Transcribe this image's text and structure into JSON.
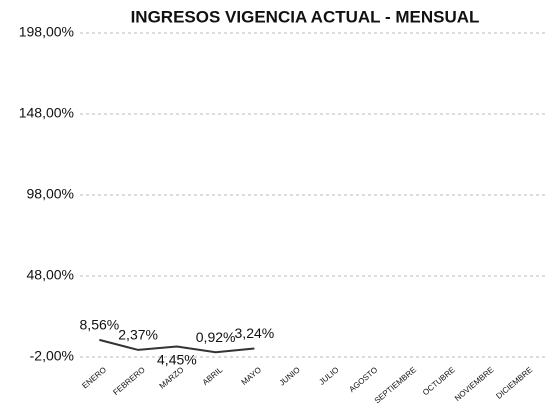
{
  "chart_data": {
    "type": "line",
    "title": "INGRESOS VIGENCIA ACTUAL - MENSUAL",
    "categories": [
      "ENERO",
      "FEBRERO",
      "MARZO",
      "ABRIL",
      "MAYO",
      "JUNIO",
      "JULIO",
      "AGOSTO",
      "SEPTIEMBRE",
      "OCTUBRE",
      "NOVIEMBRE",
      "DICIEMBRE"
    ],
    "series": [
      {
        "color": "#333333",
        "values": [
          8.56,
          2.37,
          4.45,
          0.92,
          3.24,
          null,
          null,
          null,
          null,
          null,
          null,
          null
        ],
        "value_labels": [
          "8,56%",
          "2,37%",
          "4,45%",
          "0,92%",
          "3,24%",
          null,
          null,
          null,
          null,
          null,
          null,
          null
        ]
      }
    ],
    "ylim": [
      -2,
      198
    ],
    "yticks": [
      {
        "value": -2,
        "label": "-2,00%"
      },
      {
        "value": 48,
        "label": "48,00%"
      },
      {
        "value": 98,
        "label": "98,00%"
      },
      {
        "value": 148,
        "label": "148,00%"
      },
      {
        "value": 198,
        "label": "198,00%"
      }
    ],
    "grid": true
  }
}
